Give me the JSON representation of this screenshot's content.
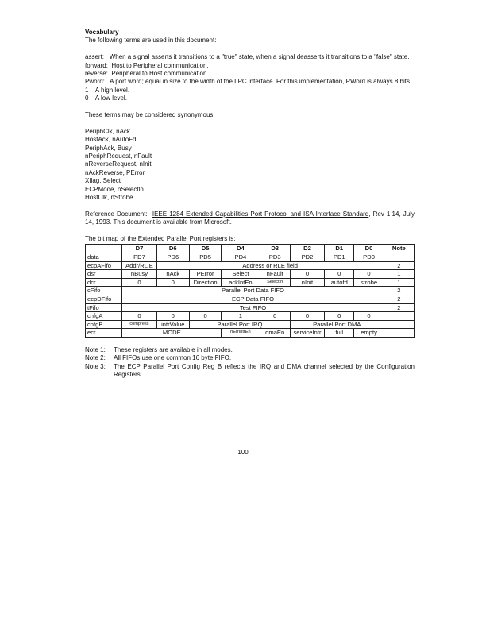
{
  "heading": "Vocabulary",
  "intro": "The following terms are used in this document:",
  "definitions": [
    {
      "term": "assert:",
      "text": "When a signal asserts it transitions to a \"true\" state, when a signal deasserts it transitions to a \"false\" state."
    },
    {
      "term": "forward:",
      "text": "Host to Peripheral communication."
    },
    {
      "term": "reverse:",
      "text": "Peripheral to Host communication"
    },
    {
      "term": "Pword:",
      "text": "A port word; equal in size to the width of the LPC interface.  For this implementation, PWord is always 8 bits."
    },
    {
      "term": "1",
      "text": "A high level."
    },
    {
      "term": "0",
      "text": "A low level."
    }
  ],
  "synonyms_intro": "These terms may be considered synonymous:",
  "synonyms": [
    "PeriphClk, nAck",
    "HostAck, nAutoFd",
    "PeriphAck, Busy",
    "nPeriphRequest, nFault",
    "nReverseRequest, nInit",
    "nAckReverse, PError",
    "Xflag, Select",
    "ECPMode, nSelectln",
    "HostClk, nStrobe"
  ],
  "reference": {
    "label": "Reference Document:",
    "title": "IEEE 1284 Extended Capabilities Port Protocol and ISA Interface Standard",
    "rest": ", Rev 1.14, July 14, 1993.  This document is available from Microsoft."
  },
  "bitmap_intro": "The bit map of the Extended Parallel Port  registers is:",
  "table": {
    "headers": [
      "",
      "D7",
      "D6",
      "D5",
      "D4",
      "D3",
      "D2",
      "D1",
      "D0",
      "Note"
    ],
    "data": [
      "data",
      "PD7",
      "PD6",
      "PD5",
      "PD4",
      "PD3",
      "PD2",
      "PD1",
      "PD0",
      ""
    ],
    "ecpAFifo": [
      "ecpAFifo",
      "Addr/RL E",
      "Address or RLE field",
      "2"
    ],
    "dsr": [
      "dsr",
      "nBusy",
      "nAck",
      "PError",
      "Select",
      "nFault",
      "0",
      "0",
      "0",
      "1"
    ],
    "dcr": [
      "dcr",
      "0",
      "0",
      "Direction",
      "ackIntEn",
      "SelectIn",
      "nInit",
      "autofd",
      "strobe",
      "1"
    ],
    "cFifo": [
      "cFifo",
      "Parallel Port Data FIFO",
      "2"
    ],
    "ecpDFifo": [
      "ecpDFifo",
      "ECP Data FIFO",
      "2"
    ],
    "tFifo": [
      "tFifo",
      "Test FIFO",
      "2"
    ],
    "cnfgA": [
      "cnfgA",
      "0",
      "0",
      "0",
      "1",
      "0",
      "0",
      "0",
      "0",
      ""
    ],
    "cnfgB": [
      "cnfgB",
      "compress",
      "intrValue",
      "Parallel Port IRQ",
      "Parallel Port DMA",
      ""
    ],
    "ecr": [
      "ecr",
      "MODE",
      "nErrIntrEn",
      "dmaEn",
      "serviceIntr",
      "full",
      "empty",
      ""
    ]
  },
  "notes": [
    {
      "k": "Note 1:",
      "v": "These registers are available in all modes."
    },
    {
      "k": "Note 2:",
      "v": "All FIFOs use one common 16 byte FIFO."
    },
    {
      "k": "Note 3:",
      "v": "The ECP Parallel Port Config Reg B reflects the IRQ and DMA channel selected by the Configuration Registers."
    }
  ],
  "page_number": "100"
}
